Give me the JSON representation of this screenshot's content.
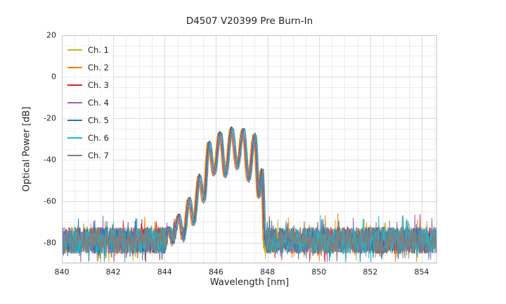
{
  "chart_data": {
    "type": "line",
    "title": "D4507 V20399 Pre Burn-In",
    "xlabel": "Wavelength [nm]",
    "ylabel": "Optical Power [dB]",
    "xlim": [
      840,
      854.6
    ],
    "ylim": [
      -90,
      20
    ],
    "xticks": [
      840,
      842,
      844,
      846,
      848,
      850,
      852,
      854
    ],
    "yticks": [
      20,
      0,
      -20,
      -40,
      -60,
      -80
    ],
    "x_minor_step": 0.5,
    "y_minor_step": 5,
    "grid": "on",
    "legend_position": "upper-left",
    "noise_floor": {
      "mean_db": -79,
      "spread_db": 13,
      "spike_prob": 0.1,
      "spike_spread_db": 7,
      "min_db": -89.5
    },
    "envelope_points_nm_db": [
      [
        843.95,
        -88
      ],
      [
        844.15,
        -73
      ],
      [
        844.3,
        -81
      ],
      [
        844.55,
        -67
      ],
      [
        844.72,
        -79
      ],
      [
        844.95,
        -59
      ],
      [
        845.12,
        -71
      ],
      [
        845.35,
        -48
      ],
      [
        845.52,
        -60
      ],
      [
        845.72,
        -32
      ],
      [
        845.92,
        -47
      ],
      [
        846.15,
        -27
      ],
      [
        846.36,
        -48
      ],
      [
        846.6,
        -25
      ],
      [
        846.82,
        -44
      ],
      [
        847.05,
        -25.5
      ],
      [
        847.26,
        -50
      ],
      [
        847.5,
        -28
      ],
      [
        847.66,
        -58
      ],
      [
        847.78,
        -45
      ],
      [
        847.92,
        -88
      ]
    ],
    "samples_per_series": 1150,
    "series": [
      {
        "name": "Ch. 1",
        "color": "#bcbd22",
        "x_offset_nm": -0.06,
        "gain_db": 0.0,
        "seed": 11
      },
      {
        "name": "Ch. 2",
        "color": "#ff7f0e",
        "x_offset_nm": -0.04,
        "gain_db": -0.6,
        "seed": 22
      },
      {
        "name": "Ch. 3",
        "color": "#d62728",
        "x_offset_nm": -0.02,
        "gain_db": 0.4,
        "seed": 33
      },
      {
        "name": "Ch. 4",
        "color": "#9467bd",
        "x_offset_nm": 0.0,
        "gain_db": -0.9,
        "seed": 44
      },
      {
        "name": "Ch. 5",
        "color": "#1f77b4",
        "x_offset_nm": 0.02,
        "gain_db": 0.6,
        "seed": 55
      },
      {
        "name": "Ch. 6",
        "color": "#17becf",
        "x_offset_nm": 0.04,
        "gain_db": -0.3,
        "seed": 66
      },
      {
        "name": "Ch. 7",
        "color": "#7f7f7f",
        "x_offset_nm": 0.06,
        "gain_db": 0.2,
        "seed": 77
      }
    ],
    "style": {
      "background": "#ffffff",
      "grid_major": "#d9d9e0",
      "grid_minor": "#ececf2",
      "spine": "#c8c8c8",
      "text": "#262626",
      "line_width": 1
    }
  }
}
